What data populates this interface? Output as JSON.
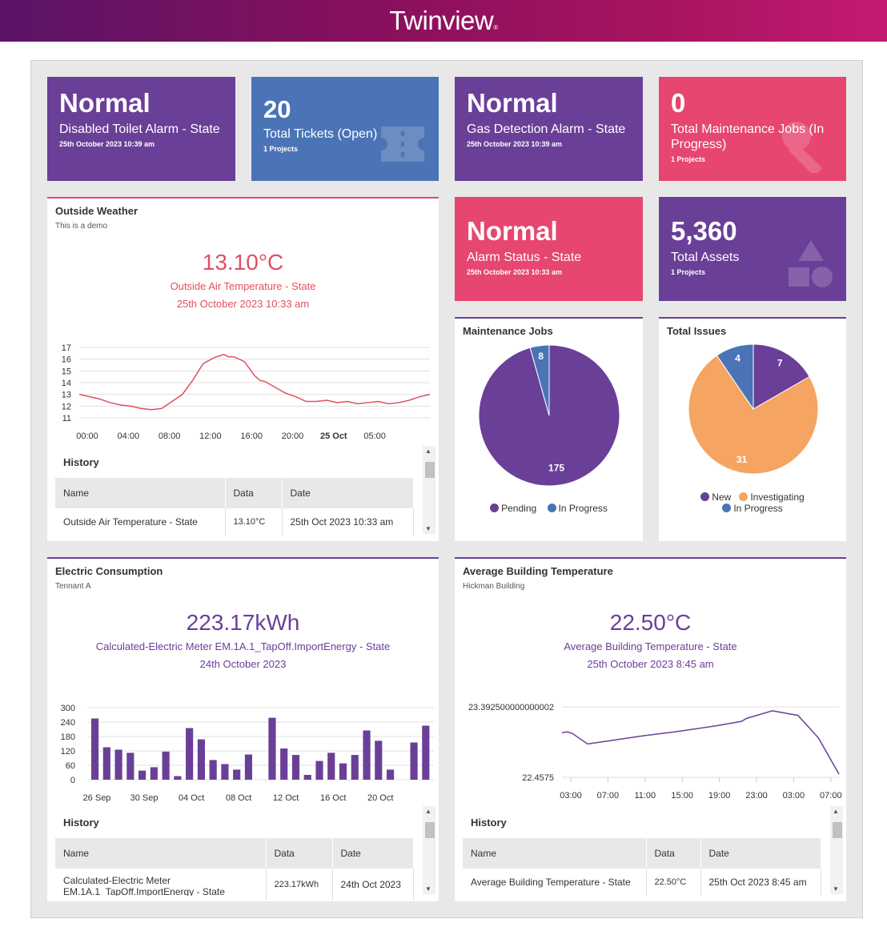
{
  "header": {
    "logo": "Twinview",
    "logo_mark": "®"
  },
  "tiles": {
    "disabled_toilet": {
      "value": "Normal",
      "label": "Disabled Toilet Alarm - State",
      "sub": "25th October 2023 10:39 am"
    },
    "tickets": {
      "value": "20",
      "label": "Total Tickets (Open)",
      "sub": "1 Projects"
    },
    "gas": {
      "value": "Normal",
      "label": "Gas Detection Alarm - State",
      "sub": "25th October 2023 10:39 am"
    },
    "maint_jobs": {
      "value": "0",
      "label": "Total Maintenance Jobs (In Progress)",
      "sub": "1 Projects"
    },
    "alarm_status": {
      "value": "Normal",
      "label": "Alarm Status - State",
      "sub": "25th October 2023 10:33 am"
    },
    "assets": {
      "value": "5,360",
      "label": "Total Assets",
      "sub": "1 Projects"
    }
  },
  "colors": {
    "purple": "#6a3f98",
    "blue": "#4a74b5",
    "pink": "#e6466f",
    "orange": "#f5a462"
  },
  "weather": {
    "title": "Outside Weather",
    "subtitle": "This is a demo",
    "value": "13.10°C",
    "desc": "Outside Air Temperature - State",
    "date": "25th October 2023 10:33 am",
    "history_title": "History",
    "columns": [
      "Name",
      "Data",
      "Date"
    ],
    "row": [
      "Outside Air Temperature - State",
      "13.10°C",
      "25th Oct 2023 10:33 am"
    ]
  },
  "electric": {
    "title": "Electric Consumption",
    "subtitle": "Tennant A",
    "value": "223.17kWh",
    "desc": "Calculated-Electric Meter EM.1A.1_TapOff.ImportEnergy - State",
    "date": "24th October 2023",
    "history_title": "History",
    "columns": [
      "Name",
      "Data",
      "Date"
    ],
    "row": [
      "Calculated-Electric Meter EM.1A.1_TapOff.ImportEnergy - State",
      "223.17kWh",
      "24th Oct 2023"
    ]
  },
  "avg_temp": {
    "title": "Average Building Temperature",
    "subtitle": "Hickman Building",
    "value": "22.50°C",
    "desc": "Average Building Temperature - State",
    "date": "25th October 2023 8:45 am",
    "history_title": "History",
    "columns": [
      "Name",
      "Data",
      "Date"
    ],
    "row": [
      "Average Building Temperature - State",
      "22.50°C",
      "25th Oct 2023 8:45 am"
    ]
  },
  "maintenance_panel": {
    "title": "Maintenance Jobs",
    "legend": [
      "Pending",
      "In Progress"
    ]
  },
  "issues_panel": {
    "title": "Total Issues",
    "legend": [
      "New",
      "Investigating",
      "In Progress"
    ]
  },
  "chart_data": [
    {
      "id": "weather",
      "type": "line",
      "x_ticks": [
        "00:00",
        "04:00",
        "08:00",
        "12:00",
        "16:00",
        "20:00",
        "25 Oct",
        "05:00"
      ],
      "y_ticks": [
        11,
        12,
        13,
        14,
        15,
        16,
        17
      ],
      "ylim": [
        11,
        17
      ],
      "x": [
        0,
        2,
        3,
        4,
        5,
        6,
        7,
        8,
        9,
        10,
        11,
        12,
        13,
        14,
        14.5,
        15,
        16,
        17,
        17.5,
        18,
        19,
        20,
        21,
        22,
        23,
        24,
        25,
        26,
        27,
        28,
        29,
        30,
        31,
        32,
        33,
        34
      ],
      "values": [
        13.0,
        12.6,
        12.3,
        12.1,
        12.0,
        11.8,
        11.7,
        11.8,
        12.4,
        13.0,
        14.2,
        15.6,
        16.1,
        16.4,
        16.2,
        16.2,
        15.8,
        14.6,
        14.2,
        14.1,
        13.6,
        13.1,
        12.8,
        12.4,
        12.4,
        12.5,
        12.3,
        12.4,
        12.2,
        12.3,
        12.4,
        12.2,
        12.3,
        12.5,
        12.8,
        13.0
      ]
    },
    {
      "id": "electric",
      "type": "bar",
      "x_ticks": [
        "26 Sep",
        "30 Sep",
        "04 Oct",
        "08 Oct",
        "12 Oct",
        "16 Oct",
        "20 Oct"
      ],
      "y_ticks": [
        0,
        60,
        120,
        180,
        240,
        300
      ],
      "ylim": [
        0,
        300
      ],
      "values": [
        255,
        135,
        125,
        112,
        38,
        52,
        117,
        15,
        215,
        168,
        82,
        65,
        42,
        105,
        null,
        258,
        130,
        103,
        20,
        78,
        112,
        68,
        103,
        205,
        162,
        42,
        null,
        155,
        225
      ]
    },
    {
      "id": "avg_temp",
      "type": "line",
      "x_ticks": [
        "03:00",
        "07:00",
        "11:00",
        "15:00",
        "19:00",
        "23:00",
        "03:00",
        "07:00"
      ],
      "y_ticks": [
        "22.4575",
        "23.392500000000002"
      ],
      "ylim": [
        22.4575,
        23.3925
      ],
      "x": [
        0,
        0.5,
        1,
        2.5,
        5,
        8,
        11,
        15,
        17.5,
        18,
        18.5,
        20.5,
        23,
        25,
        27
      ],
      "values": [
        23.05,
        23.06,
        23.04,
        22.9,
        22.95,
        23.01,
        23.06,
        23.14,
        23.2,
        23.24,
        23.26,
        23.34,
        23.28,
        22.98,
        22.5
      ]
    },
    {
      "id": "maintenance",
      "type": "pie",
      "labels": [
        "Pending",
        "In Progress"
      ],
      "values": [
        175,
        8
      ]
    },
    {
      "id": "issues",
      "type": "pie",
      "labels": [
        "New",
        "Investigating",
        "In Progress"
      ],
      "values": [
        7,
        31,
        4
      ]
    }
  ]
}
